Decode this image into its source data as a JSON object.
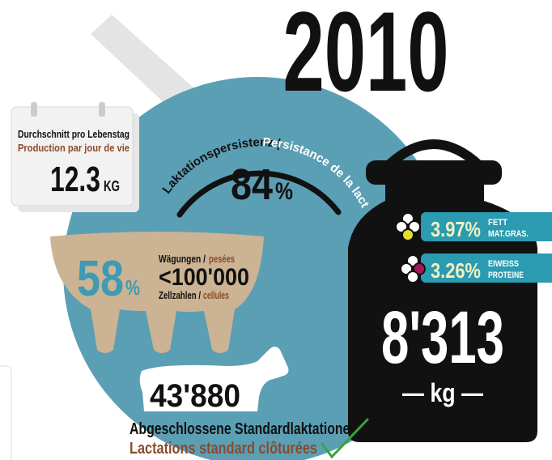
{
  "year": "2010",
  "daily_production": {
    "label_de": "Durchschnitt pro Lebenstag",
    "label_fr": "Production par jour de vie",
    "value": "12.3",
    "unit": "KG"
  },
  "persistence": {
    "label_de": "Laktationspersistenz |",
    "label_fr": "Persistance de la lactation",
    "value": "84",
    "unit": "%"
  },
  "cell_counts": {
    "value": "58",
    "unit": "%",
    "weighings_de": "Wägungen /",
    "weighings_fr": "pesées",
    "threshold": "<100'000",
    "cells_de": "Zellzahlen /",
    "cells_fr": "cellules"
  },
  "milk_can": {
    "value": "8'313",
    "unit": "— kg —",
    "fat": {
      "value": "3.97%",
      "label_de": "FETT",
      "label_fr": "MAT.GRAS."
    },
    "protein": {
      "value": "3.26%",
      "label_de": "EIWEISS",
      "label_fr": "PROTEINE"
    }
  },
  "lactations": {
    "value": "43'880",
    "label_de": "Abgeschlossene Standardlaktationen",
    "label_fr": "Lactations standard clôturées"
  }
}
